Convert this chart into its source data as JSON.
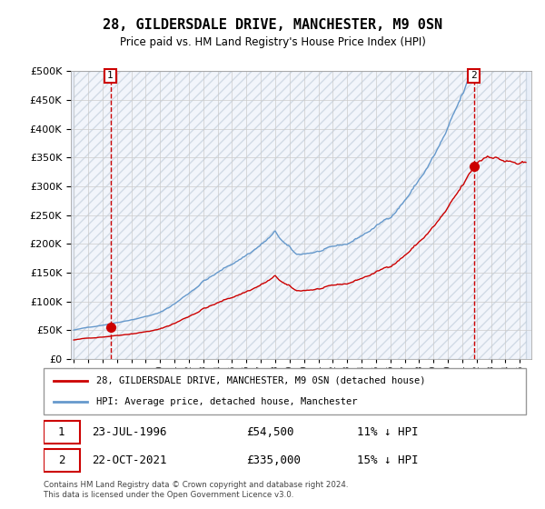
{
  "title": "28, GILDERSDALE DRIVE, MANCHESTER, M9 0SN",
  "subtitle": "Price paid vs. HM Land Registry's House Price Index (HPI)",
  "sale1_date": "23-JUL-1996",
  "sale1_price": 54500,
  "sale1_hpi_pct": "11% ↓ HPI",
  "sale2_date": "22-OCT-2021",
  "sale2_price": 335000,
  "sale2_hpi_pct": "15% ↓ HPI",
  "legend_line1": "28, GILDERSDALE DRIVE, MANCHESTER, M9 0SN (detached house)",
  "legend_line2": "HPI: Average price, detached house, Manchester",
  "footer": "Contains HM Land Registry data © Crown copyright and database right 2024.\nThis data is licensed under the Open Government Licence v3.0.",
  "red_line_color": "#cc0000",
  "blue_line_color": "#6699cc",
  "background_color": "#e8eef8",
  "ylim": [
    0,
    500000
  ],
  "yticks": [
    0,
    50000,
    100000,
    150000,
    200000,
    250000,
    300000,
    350000,
    400000,
    450000,
    500000
  ],
  "sale1_x": 1996.55,
  "sale2_x": 2021.8,
  "xlim_min": 1993.8,
  "xlim_max": 2025.8
}
